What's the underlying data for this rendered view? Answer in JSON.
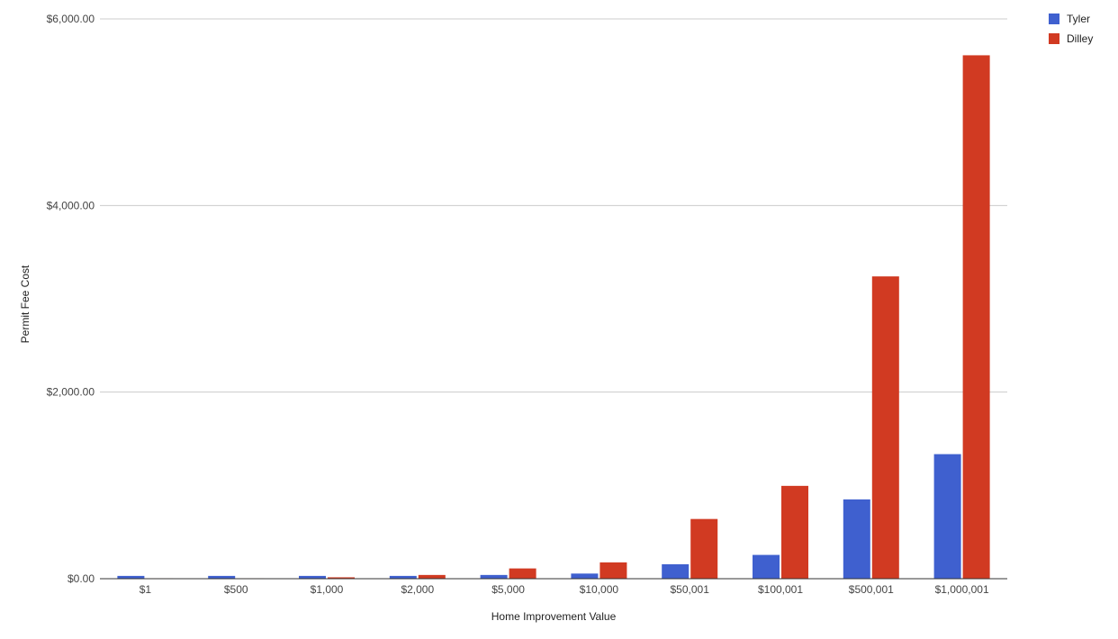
{
  "chart_data": {
    "type": "bar",
    "title": "",
    "xlabel": "Home Improvement Value",
    "ylabel": "Permit Fee Cost",
    "categories": [
      "$1",
      "$500",
      "$1,000",
      "$2,000",
      "$5,000",
      "$10,000",
      "$50,001",
      "$100,001",
      "$500,001",
      "$1,000,001"
    ],
    "series": [
      {
        "name": "Tyler",
        "color": "#3f60cf",
        "values": [
          30,
          30,
          30,
          30,
          40,
          55,
          155,
          255,
          850,
          1335
        ]
      },
      {
        "name": "Dilley",
        "color": "#d13a22",
        "values": [
          5,
          5,
          15,
          40,
          110,
          175,
          640,
          995,
          3240,
          5610
        ]
      }
    ],
    "ylim": [
      0,
      6000
    ],
    "yticks": [
      0,
      2000,
      4000,
      6000
    ],
    "ytick_labels": [
      "$0.00",
      "$2,000.00",
      "$4,000.00",
      "$6,000.00"
    ],
    "grid": true,
    "legend_position": "top-right"
  }
}
